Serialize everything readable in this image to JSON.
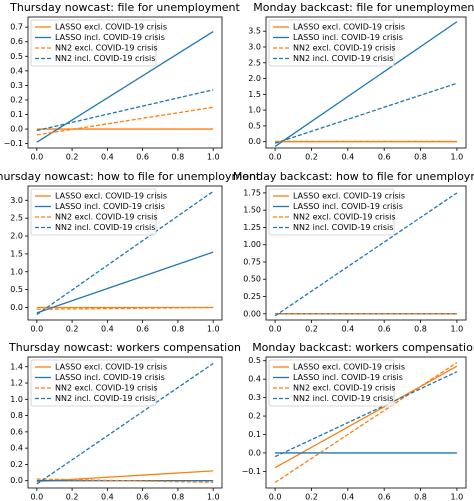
{
  "chart_data": [
    {
      "type": "line",
      "title": "Thursday nowcast: file for unemployment",
      "x": [
        0,
        1
      ],
      "xlim": [
        -0.05,
        1.05
      ],
      "xticks": [
        {
          "value": 0,
          "label": "0.0"
        },
        0.2,
        0.4,
        0.6,
        0.8,
        {
          "value": 1,
          "label": "1.0"
        }
      ],
      "ylim": [
        -0.13,
        0.77
      ],
      "yticks": [
        {
          "value": -0.1,
          "label": "−0.1"
        },
        {
          "value": 0,
          "label": "0.0"
        },
        0.1,
        0.2,
        0.3,
        0.4,
        0.5,
        0.6,
        0.7
      ],
      "legend": "upper left",
      "series": [
        {
          "name": "LASSO excl. COVID-19 crisis",
          "color": "#ff7f0e",
          "linestyle": "solid",
          "values": [
            0.0,
            0.0
          ]
        },
        {
          "name": "LASSO incl. COVID-19 crisis",
          "color": "#1f77b4",
          "linestyle": "solid",
          "values": [
            -0.09,
            0.67
          ]
        },
        {
          "name": "NN2 excl. COVID-19 crisis",
          "color": "#ff7f0e",
          "linestyle": "dashed",
          "values": [
            -0.04,
            0.15
          ]
        },
        {
          "name": "NN2 incl. COVID-19 crisis",
          "color": "#1f77b4",
          "linestyle": "dashed",
          "values": [
            -0.01,
            0.27
          ]
        }
      ]
    },
    {
      "type": "line",
      "title": "Monday backcast: file for unemployment",
      "x": [
        0,
        1
      ],
      "xlim": [
        -0.05,
        1.05
      ],
      "xticks": [
        {
          "value": 0,
          "label": "0.0"
        },
        0.2,
        0.4,
        0.6,
        0.8,
        {
          "value": 1,
          "label": "1.0"
        }
      ],
      "ylim": [
        -0.2,
        3.95
      ],
      "yticks": [
        {
          "value": 0,
          "label": "0.0"
        },
        0.5,
        {
          "value": 1,
          "label": "1.0"
        },
        1.5,
        {
          "value": 2,
          "label": "2.0"
        },
        2.5,
        {
          "value": 3,
          "label": "3.0"
        },
        3.5
      ],
      "legend": "upper left",
      "series": [
        {
          "name": "LASSO excl. COVID-19 crisis",
          "color": "#ff7f0e",
          "linestyle": "solid",
          "values": [
            0.0,
            0.0
          ]
        },
        {
          "name": "LASSO incl. COVID-19 crisis",
          "color": "#1f77b4",
          "linestyle": "solid",
          "values": [
            -0.15,
            3.8
          ]
        },
        {
          "name": "NN2 excl. COVID-19 crisis",
          "color": "#ff7f0e",
          "linestyle": "dashed",
          "values": [
            0.01,
            0.01
          ]
        },
        {
          "name": "NN2 incl. COVID-19 crisis",
          "color": "#1f77b4",
          "linestyle": "dashed",
          "values": [
            -0.05,
            1.85
          ]
        }
      ]
    },
    {
      "type": "line",
      "title": "Thursday nowcast: how to file for unemployment",
      "x": [
        0,
        1
      ],
      "xlim": [
        -0.05,
        1.05
      ],
      "xticks": [
        {
          "value": 0,
          "label": "0.0"
        },
        0.2,
        0.4,
        0.6,
        0.8,
        {
          "value": 1,
          "label": "1.0"
        }
      ],
      "ylim": [
        -0.35,
        3.4
      ],
      "yticks": [
        {
          "value": 0,
          "label": "0.0"
        },
        0.5,
        {
          "value": 1,
          "label": "1.0"
        },
        1.5,
        {
          "value": 2,
          "label": "2.0"
        },
        2.5,
        {
          "value": 3,
          "label": "3.0"
        }
      ],
      "legend": "upper left",
      "series": [
        {
          "name": "LASSO excl. COVID-19 crisis",
          "color": "#ff7f0e",
          "linestyle": "solid",
          "values": [
            0.0,
            0.0
          ]
        },
        {
          "name": "LASSO incl. COVID-19 crisis",
          "color": "#1f77b4",
          "linestyle": "solid",
          "values": [
            -0.15,
            1.55
          ]
        },
        {
          "name": "NN2 excl. COVID-19 crisis",
          "color": "#ff7f0e",
          "linestyle": "dashed",
          "values": [
            -0.05,
            0.0
          ]
        },
        {
          "name": "NN2 incl. COVID-19 crisis",
          "color": "#1f77b4",
          "linestyle": "dashed",
          "values": [
            -0.2,
            3.25
          ]
        }
      ]
    },
    {
      "type": "line",
      "title": "Monday backcast: how to file for unemployment",
      "x": [
        0,
        1
      ],
      "xlim": [
        -0.05,
        1.05
      ],
      "xticks": [
        {
          "value": 0,
          "label": "0.0"
        },
        0.2,
        0.4,
        0.6,
        0.8,
        {
          "value": 1,
          "label": "1.0"
        }
      ],
      "ylim": [
        -0.09,
        1.85
      ],
      "yticks": [
        {
          "value": 0,
          "label": "0.00"
        },
        0.25,
        {
          "value": 0.5,
          "label": "0.50"
        },
        0.75,
        {
          "value": 1,
          "label": "1.00"
        },
        1.25,
        {
          "value": 1.5,
          "label": "1.50"
        },
        1.75
      ],
      "legend": "upper left",
      "series": [
        {
          "name": "LASSO excl. COVID-19 crisis",
          "color": "#ff7f0e",
          "linestyle": "solid",
          "values": [
            0.0,
            0.0
          ]
        },
        {
          "name": "LASSO incl. COVID-19 crisis",
          "color": "#1f77b4",
          "linestyle": "solid",
          "values": [
            0.0,
            0.0
          ]
        },
        {
          "name": "NN2 excl. COVID-19 crisis",
          "color": "#ff7f0e",
          "linestyle": "dashed",
          "values": [
            0.0,
            0.0
          ]
        },
        {
          "name": "NN2 incl. COVID-19 crisis",
          "color": "#1f77b4",
          "linestyle": "dashed",
          "values": [
            -0.03,
            1.75
          ]
        }
      ]
    },
    {
      "type": "line",
      "title": "Thursday nowcast: workers compensation",
      "x": [
        0,
        1
      ],
      "xlim": [
        -0.05,
        1.05
      ],
      "xticks": [
        {
          "value": 0,
          "label": "0.0"
        },
        0.2,
        0.4,
        0.6,
        0.8,
        {
          "value": 1,
          "label": "1.0"
        }
      ],
      "ylim": [
        -0.09,
        1.52
      ],
      "yticks": [
        {
          "value": 0,
          "label": "0.0"
        },
        0.2,
        0.4,
        0.6,
        0.8,
        {
          "value": 1,
          "label": "1.0"
        },
        1.2,
        1.4
      ],
      "legend": "upper left",
      "series": [
        {
          "name": "LASSO excl. COVID-19 crisis",
          "color": "#ff7f0e",
          "linestyle": "solid",
          "values": [
            -0.01,
            0.12
          ]
        },
        {
          "name": "LASSO incl. COVID-19 crisis",
          "color": "#1f77b4",
          "linestyle": "solid",
          "values": [
            0.0,
            0.0
          ]
        },
        {
          "name": "NN2 excl. COVID-19 crisis",
          "color": "#ff7f0e",
          "linestyle": "dashed",
          "values": [
            0.02,
            -0.02
          ]
        },
        {
          "name": "NN2 incl. COVID-19 crisis",
          "color": "#1f77b4",
          "linestyle": "dashed",
          "values": [
            -0.04,
            1.44
          ]
        }
      ]
    },
    {
      "type": "line",
      "title": "Monday backcast: workers compensation",
      "x": [
        0,
        1
      ],
      "xlim": [
        -0.05,
        1.05
      ],
      "xticks": [
        {
          "value": 0,
          "label": "0.0"
        },
        0.2,
        0.4,
        0.6,
        0.8,
        {
          "value": 1,
          "label": "1.0"
        }
      ],
      "ylim": [
        -0.19,
        0.52
      ],
      "yticks": [
        {
          "value": -0.1,
          "label": "−0.1"
        },
        {
          "value": 0,
          "label": "0.0"
        },
        0.1,
        0.2,
        0.3,
        0.4,
        0.5
      ],
      "legend": "upper left",
      "series": [
        {
          "name": "LASSO excl. COVID-19 crisis",
          "color": "#ff7f0e",
          "linestyle": "solid",
          "values": [
            -0.08,
            0.47
          ]
        },
        {
          "name": "LASSO incl. COVID-19 crisis",
          "color": "#1f77b4",
          "linestyle": "solid",
          "values": [
            0.0,
            0.0
          ]
        },
        {
          "name": "NN2 excl. COVID-19 crisis",
          "color": "#ff7f0e",
          "linestyle": "dashed",
          "values": [
            -0.16,
            0.49
          ]
        },
        {
          "name": "NN2 incl. COVID-19 crisis",
          "color": "#1f77b4",
          "linestyle": "dashed",
          "values": [
            -0.02,
            0.44
          ]
        }
      ]
    }
  ]
}
